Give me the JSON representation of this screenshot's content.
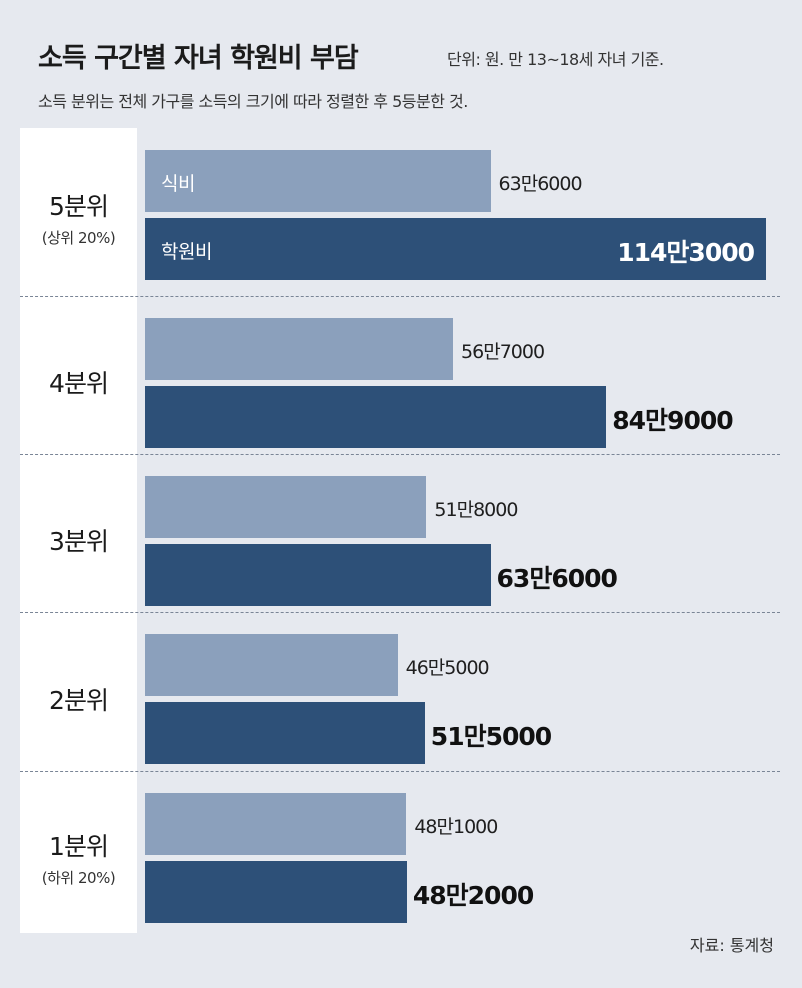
{
  "title": "소득 구간별 자녀 학원비 부담",
  "unit_note": "단위: 원. 만 13~18세 자녀 기준.",
  "description_note": "소득 분위는 전체 가구를 소득의 크기에 따라 정렬한 후 5등분한 것.",
  "source": "자료: 통계청",
  "colors": {
    "food": "#8ba0bc",
    "education": "#2d5078",
    "panel": "#ffffff",
    "background": "#e6e9ef"
  },
  "chart_data": {
    "type": "bar",
    "orientation": "horizontal",
    "categories": [
      "5분위",
      "4분위",
      "3분위",
      "2분위",
      "1분위"
    ],
    "category_notes": [
      "(상위 20%)",
      "",
      "",
      "",
      "(하위 20%)"
    ],
    "series": [
      {
        "name": "식비",
        "values": [
          636000,
          567000,
          518000,
          465000,
          481000
        ],
        "labels": [
          "63만6000",
          "56만7000",
          "51만8000",
          "46만5000",
          "48만1000"
        ]
      },
      {
        "name": "학원비",
        "values": [
          1143000,
          849000,
          636000,
          515000,
          482000
        ],
        "labels": [
          "114만3000",
          "84만9000",
          "63만6000",
          "51만5000",
          "48만2000"
        ]
      }
    ],
    "xlim": [
      0,
      1143000
    ],
    "legend": "none",
    "grid": false
  }
}
